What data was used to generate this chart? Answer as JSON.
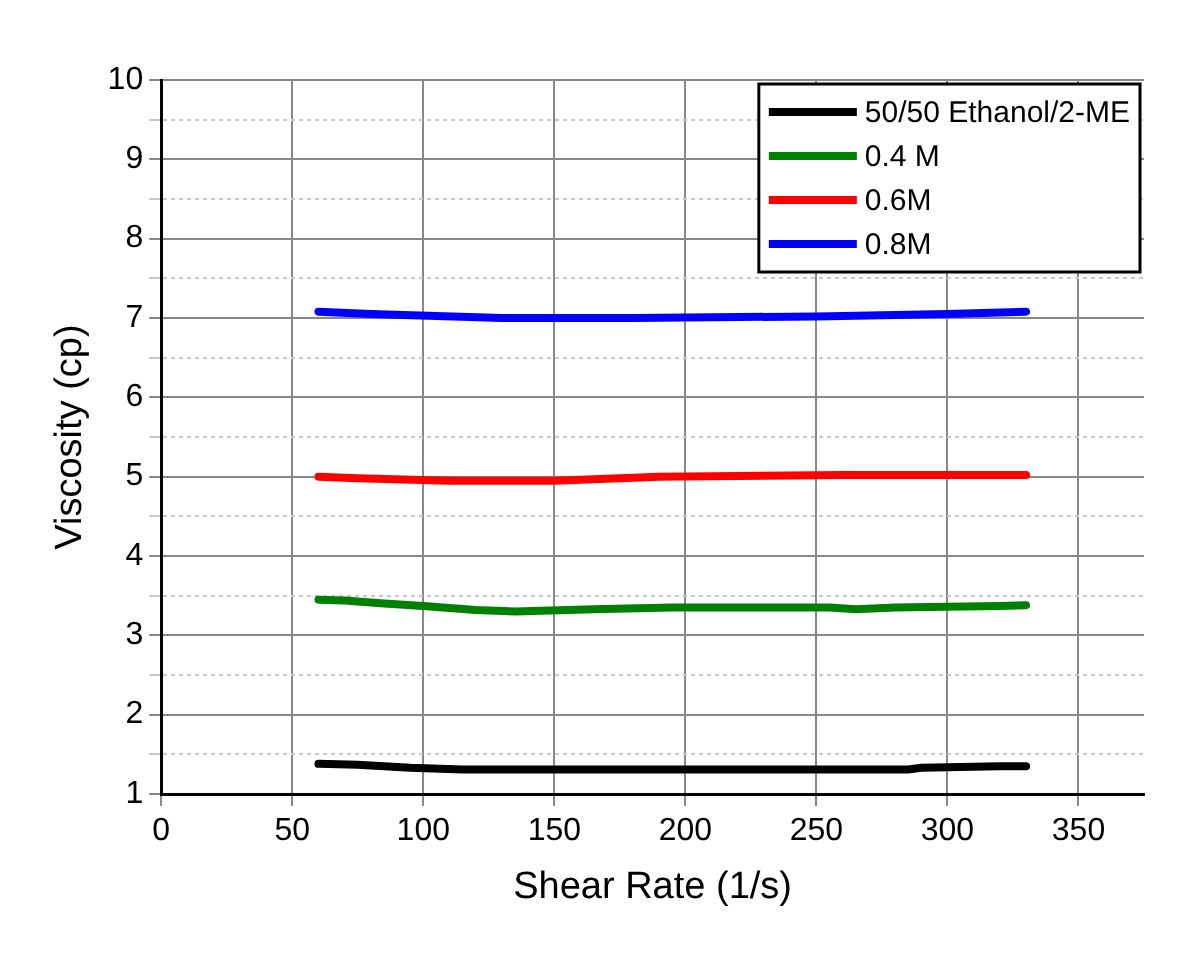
{
  "chart_data": {
    "type": "line",
    "xlabel": "Shear Rate (1/s)",
    "ylabel": "Viscosity (cp)",
    "xlim": [
      0,
      375
    ],
    "xticks": [
      0,
      50,
      100,
      150,
      200,
      250,
      300,
      350
    ],
    "ylim": [
      1,
      10
    ],
    "yticks": [
      1,
      {
        "value": 1.5,
        "label": null
      },
      2,
      {
        "value": 2.5,
        "label": null
      },
      3,
      {
        "value": 3.5,
        "label": null
      },
      4,
      {
        "value": 4.5,
        "label": null
      },
      5,
      {
        "value": 5.5,
        "label": null
      },
      6,
      {
        "value": 6.5,
        "label": null
      },
      7,
      {
        "value": 7.5,
        "label": null
      },
      8,
      {
        "value": 8.5,
        "label": null
      },
      9,
      {
        "value": 9.5,
        "label": null
      },
      10
    ],
    "grid": true,
    "legend": "top right",
    "marker": "none",
    "line_style": "solid",
    "series": [
      {
        "name": "50/50 Ethanol/2-ME",
        "color": "#000000",
        "x": [
          60,
          75,
          95,
          115,
          200,
          285,
          290,
          320,
          330
        ],
        "values": [
          1.38,
          1.37,
          1.33,
          1.31,
          1.31,
          1.31,
          1.33,
          1.35,
          1.35
        ]
      },
      {
        "name": "0.4 M",
        "color": "#008000",
        "x": [
          60,
          70,
          85,
          100,
          120,
          135,
          165,
          195,
          255,
          265,
          280,
          320,
          330
        ],
        "values": [
          3.45,
          3.44,
          3.4,
          3.37,
          3.32,
          3.3,
          3.33,
          3.35,
          3.35,
          3.33,
          3.35,
          3.37,
          3.38
        ]
      },
      {
        "name": "0.6M",
        "color": "#ff0000",
        "x": [
          60,
          75,
          110,
          150,
          190,
          260,
          330
        ],
        "values": [
          5.0,
          4.98,
          4.95,
          4.95,
          5.0,
          5.02,
          5.02
        ]
      },
      {
        "name": "0.8M",
        "color": "#0000ff",
        "x": [
          60,
          80,
          130,
          180,
          250,
          300,
          330
        ],
        "values": [
          7.08,
          7.05,
          7.0,
          7.0,
          7.02,
          7.05,
          7.08
        ]
      }
    ]
  }
}
